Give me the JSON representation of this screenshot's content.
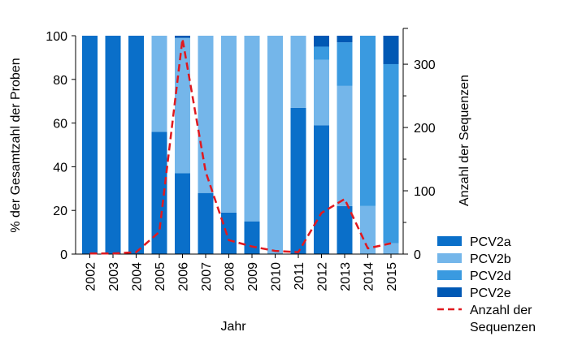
{
  "chart_data": {
    "type": "bar",
    "stacked": true,
    "categories": [
      "2002",
      "2003",
      "2004",
      "2005",
      "2006",
      "2007",
      "2008",
      "2009",
      "2010",
      "2011",
      "2012",
      "2013",
      "2014",
      "2015"
    ],
    "series": [
      {
        "name": "PCV2a",
        "color": "#0a6fc9",
        "values": [
          100,
          100,
          100,
          56,
          37,
          28,
          19,
          15,
          0,
          67,
          59,
          22,
          0,
          0
        ]
      },
      {
        "name": "PCV2b",
        "color": "#74b6ea",
        "values": [
          0,
          0,
          0,
          44,
          62,
          72,
          81,
          85,
          100,
          33,
          30,
          55,
          22,
          5
        ]
      },
      {
        "name": "PCV2d",
        "color": "#3a9ae0",
        "values": [
          0,
          0,
          0,
          0,
          0,
          0,
          0,
          0,
          0,
          0,
          6,
          20,
          78,
          82
        ]
      },
      {
        "name": "PCV2e",
        "color": "#0058b4",
        "values": [
          0,
          0,
          0,
          0,
          1,
          0,
          0,
          0,
          0,
          0,
          5,
          3,
          0,
          13
        ]
      },
      {
        "name": "Anzahl der Sequenzen",
        "type": "line",
        "axis": "right",
        "color": "#e0191f",
        "dash": true,
        "values": [
          1,
          1,
          3,
          35,
          340,
          130,
          22,
          12,
          5,
          3,
          65,
          87,
          9,
          17
        ]
      }
    ],
    "ylabel": "% der Gesamtzahl der Proben",
    "y2label": "Anzahl der Sequenzen",
    "xlabel": "Jahr",
    "ylim": [
      0,
      100
    ],
    "y2lim": [
      0,
      345
    ],
    "yticks": [
      0,
      20,
      40,
      60,
      80,
      100
    ],
    "y2ticks": [
      0,
      100,
      200,
      300
    ],
    "legend": {
      "position": "bottom-right",
      "items": [
        {
          "label": "PCV2a",
          "color": "#0a6fc9",
          "kind": "patch"
        },
        {
          "label": "PCV2b",
          "color": "#74b6ea",
          "kind": "patch"
        },
        {
          "label": "PCV2d",
          "color": "#3a9ae0",
          "kind": "patch"
        },
        {
          "label": "PCV2e",
          "color": "#0058b4",
          "kind": "patch"
        },
        {
          "label": "Anzahl der",
          "label2": "Sequenzen",
          "color": "#e0191f",
          "kind": "dashed-line"
        }
      ]
    }
  }
}
